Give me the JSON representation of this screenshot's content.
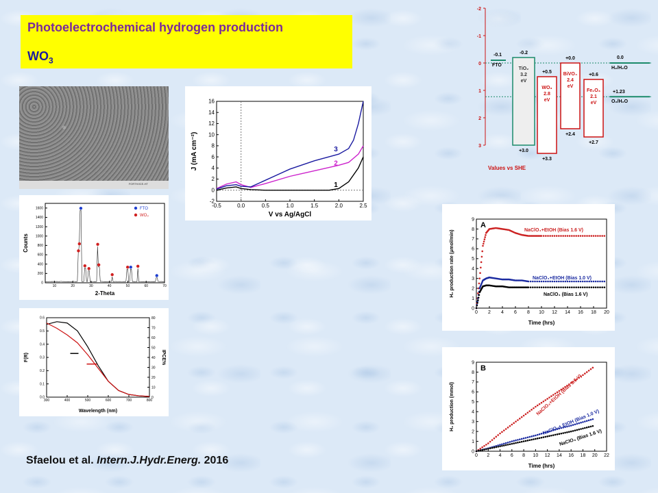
{
  "title": {
    "line1": "Photoelectrochemical hydrogen production",
    "line2_main": "WO",
    "line2_sub": "3"
  },
  "citation": {
    "authors": "Sfaelou et al.",
    "journal": "Intern.J.Hydr.Energ.",
    "year": "2016"
  },
  "sem": {
    "footer": "FORTH/ICE-HT"
  },
  "jv_chart": {
    "chart_data": {
      "type": "line",
      "xlabel": "V vs Ag/AgCl",
      "ylabel": "J (mA cm⁻²)",
      "xlim": [
        -0.5,
        2.5
      ],
      "ylim": [
        -2,
        16
      ],
      "xticks": [
        "-0.5",
        "0.0",
        "0.5",
        "1.0",
        "1.5",
        "2.0",
        "2.5"
      ],
      "yticks": [
        "-2",
        "0",
        "2",
        "4",
        "6",
        "8",
        "10",
        "12",
        "14",
        "16"
      ],
      "series": [
        {
          "name": "1",
          "color": "#000000",
          "x": [
            -0.5,
            -0.3,
            -0.1,
            0.0,
            0.2,
            0.5,
            1.0,
            1.5,
            1.8,
            2.0,
            2.2,
            2.4,
            2.5
          ],
          "y": [
            0,
            0.4,
            0.6,
            0.3,
            0.1,
            0,
            0,
            0,
            0,
            0.3,
            1.5,
            4,
            6
          ]
        },
        {
          "name": "2",
          "color": "#cc22cc",
          "x": [
            -0.5,
            -0.3,
            -0.1,
            0.0,
            0.2,
            0.5,
            1.0,
            1.5,
            2.0,
            2.2,
            2.4,
            2.5
          ],
          "y": [
            0.3,
            1.1,
            1.5,
            1.0,
            0.5,
            1.2,
            2.5,
            3.5,
            4.5,
            5.0,
            6.5,
            8.0
          ]
        },
        {
          "name": "3",
          "color": "#1a1aa0",
          "x": [
            -0.5,
            -0.3,
            -0.1,
            0.0,
            0.2,
            0.5,
            1.0,
            1.5,
            2.0,
            2.2,
            2.3,
            2.4,
            2.5
          ],
          "y": [
            0.2,
            0.8,
            1.0,
            0.7,
            0.6,
            1.8,
            3.8,
            5.3,
            6.5,
            7.5,
            9,
            12,
            16
          ]
        }
      ]
    }
  },
  "xrd_chart": {
    "chart_data": {
      "type": "scatter",
      "xlabel": "2-Theta",
      "ylabel": "Counts",
      "xlim": [
        5,
        70
      ],
      "ylim": [
        0,
        1700
      ],
      "xticks": [
        "10",
        "20",
        "30",
        "40",
        "50",
        "60",
        "70"
      ],
      "yticks": [
        "0",
        "200",
        "400",
        "600",
        "800",
        "1000",
        "1200",
        "1400",
        "1600"
      ],
      "legend": [
        {
          "name": "FTO",
          "color": "#1f3fd0"
        },
        {
          "name": "WO₃",
          "color": "#d02020"
        }
      ],
      "peaks": [
        {
          "x": 23.1,
          "y": 640,
          "phase": "WO3"
        },
        {
          "x": 23.6,
          "y": 790,
          "phase": "WO3"
        },
        {
          "x": 24.4,
          "y": 1550,
          "phase": "FTO"
        },
        {
          "x": 26.6,
          "y": 320,
          "phase": "WO3"
        },
        {
          "x": 28.8,
          "y": 260,
          "phase": "WO3"
        },
        {
          "x": 33.6,
          "y": 780,
          "phase": "WO3"
        },
        {
          "x": 34.2,
          "y": 340,
          "phase": "WO3"
        },
        {
          "x": 41.5,
          "y": 130,
          "phase": "WO3"
        },
        {
          "x": 49.9,
          "y": 290,
          "phase": "WO3"
        },
        {
          "x": 51.6,
          "y": 290,
          "phase": "FTO"
        },
        {
          "x": 55.5,
          "y": 310,
          "phase": "WO3"
        },
        {
          "x": 65.8,
          "y": 110,
          "phase": "FTO"
        }
      ]
    }
  },
  "abs_chart": {
    "chart_data": {
      "type": "line",
      "xlabel": "Wavelength (nm)",
      "ylabel": "F(R)",
      "y2label": "IPCE%",
      "xlim": [
        300,
        800
      ],
      "ylim": [
        0,
        0.6
      ],
      "y2lim": [
        0,
        80
      ],
      "xticks": [
        "300",
        "400",
        "500",
        "600",
        "700",
        "800"
      ],
      "yticks": [
        "0.0",
        "0.1",
        "0.2",
        "0.3",
        "0.4",
        "0.5",
        "0.6"
      ],
      "y2ticks": [
        "0",
        "10",
        "20",
        "30",
        "40",
        "50",
        "60",
        "70",
        "80"
      ],
      "series": [
        {
          "name": "F(R)",
          "color": "#000000",
          "x": [
            300,
            350,
            400,
            450,
            500,
            550,
            600,
            650,
            700,
            750,
            800
          ],
          "y": [
            0.55,
            0.57,
            0.56,
            0.5,
            0.38,
            0.24,
            0.12,
            0.05,
            0.02,
            0.01,
            0.005
          ]
        },
        {
          "name": "IPCE",
          "color": "#cc1111",
          "x": [
            300,
            350,
            400,
            450,
            500,
            550,
            600,
            650,
            700,
            750,
            800
          ],
          "y": [
            0.56,
            0.52,
            0.47,
            0.41,
            0.32,
            0.22,
            0.12,
            0.05,
            0.02,
            0.01,
            0.005
          ]
        }
      ]
    }
  },
  "band_chart": {
    "chart_data": {
      "type": "bar",
      "footer": "Values vs SHE",
      "ylim": [
        -2,
        3
      ],
      "yticks": [
        "-2",
        "-1",
        "0",
        "1",
        "2",
        "3"
      ],
      "levels": [
        {
          "label": "FTO",
          "top": "-0.1"
        },
        {
          "label": "TiO₂",
          "gap": "3.2",
          "unit": "eV",
          "top": "-0.2",
          "bottom": "+3.0"
        },
        {
          "label": "WO₃",
          "gap": "2.8",
          "unit": "eV",
          "top": "+0.5",
          "bottom": "+3.3"
        },
        {
          "label": "BiVO₄",
          "gap": "2.4",
          "unit": "eV",
          "top": "+0.0",
          "bottom": "+2.4"
        },
        {
          "label": "Fe₂O₃",
          "gap": "2.1",
          "unit": "eV",
          "top": "+0.6",
          "bottom": "+2.7"
        }
      ],
      "redox": [
        {
          "label": "H₂/H₂O",
          "value": "0.0"
        },
        {
          "label": "O₂/H₂O",
          "value": "+1.23"
        }
      ]
    }
  },
  "rate_chart": {
    "chart_data": {
      "type": "scatter",
      "panel": "A",
      "xlabel": "Time (hrs)",
      "ylabel": "H₂ production rate (μmol/min)",
      "xlim": [
        0,
        20
      ],
      "ylim": [
        0,
        9
      ],
      "xticks": [
        "0",
        "2",
        "4",
        "6",
        "8",
        "10",
        "12",
        "14",
        "16",
        "18",
        "20"
      ],
      "yticks": [
        "0",
        "1",
        "2",
        "3",
        "4",
        "5",
        "6",
        "7",
        "8",
        "9"
      ],
      "series": [
        {
          "name": "NaClO₄+EtOH (Bias 1.6 V)",
          "color": "#cc2222",
          "x": [
            0,
            0.5,
            1,
            1.5,
            2,
            3,
            4,
            5,
            6,
            7,
            8,
            9,
            10,
            12,
            14,
            16,
            18,
            20
          ],
          "y": [
            0,
            3,
            6.3,
            7.6,
            8.0,
            8.1,
            8.0,
            7.9,
            7.6,
            7.4,
            7.3,
            7.3,
            7.3,
            7.3,
            7.3,
            7.3,
            7.3,
            7.3
          ]
        },
        {
          "name": "NaClO₄+EtOH (Bias 1.0 V)",
          "color": "#1a2aa0",
          "x": [
            0,
            0.5,
            1,
            1.5,
            2,
            3,
            4,
            5,
            6,
            7,
            8,
            10,
            12,
            14,
            16,
            18,
            20
          ],
          "y": [
            0,
            2.0,
            2.8,
            3.0,
            3.1,
            3.0,
            2.9,
            2.9,
            2.8,
            2.8,
            2.7,
            2.7,
            2.7,
            2.7,
            2.7,
            2.7,
            2.7
          ]
        },
        {
          "name": "NaClO₄ (Bias 1.6 V)",
          "color": "#000000",
          "x": [
            0,
            0.5,
            1,
            1.5,
            2,
            3,
            4,
            5,
            6,
            7,
            8,
            10,
            12,
            14,
            16,
            18,
            20
          ],
          "y": [
            0,
            1.6,
            2.2,
            2.3,
            2.3,
            2.2,
            2.2,
            2.1,
            2.1,
            2.1,
            2.1,
            2.1,
            2.1,
            2.1,
            2.1,
            2.1,
            2.1
          ]
        }
      ]
    }
  },
  "cum_chart": {
    "chart_data": {
      "type": "scatter",
      "panel": "B",
      "xlabel": "Time (hrs)",
      "ylabel": "H₂ production (mmol)",
      "xlim": [
        0,
        22
      ],
      "ylim": [
        0,
        9
      ],
      "xticks": [
        "0",
        "2",
        "4",
        "6",
        "8",
        "10",
        "12",
        "14",
        "16",
        "18",
        "20",
        "22"
      ],
      "yticks": [
        "0",
        "1",
        "2",
        "3",
        "4",
        "5",
        "6",
        "7",
        "8",
        "9"
      ],
      "series": [
        {
          "name": "NaClO₄+EtOH (Bias 1.6 V)",
          "color": "#cc2222",
          "x": [
            0,
            2,
            4,
            6,
            8,
            10,
            12,
            14,
            16,
            18,
            20
          ],
          "y": [
            0,
            0.8,
            1.8,
            2.7,
            3.6,
            4.5,
            5.3,
            6.1,
            6.9,
            7.7,
            8.6
          ]
        },
        {
          "name": "NaClO₄+ EtOH (Bias 1.0 V)",
          "color": "#1a2aa0",
          "x": [
            0,
            2,
            4,
            6,
            8,
            10,
            12,
            14,
            16,
            18,
            20
          ],
          "y": [
            0,
            0.3,
            0.65,
            1.0,
            1.3,
            1.6,
            1.95,
            2.3,
            2.6,
            2.95,
            3.3
          ]
        },
        {
          "name": "NaClO₄ (Bias 1.6 V)",
          "color": "#000000",
          "x": [
            0,
            2,
            4,
            6,
            8,
            10,
            12,
            14,
            16,
            18,
            20
          ],
          "y": [
            0,
            0.25,
            0.5,
            0.75,
            1.0,
            1.25,
            1.5,
            1.75,
            2.0,
            2.3,
            2.6
          ]
        }
      ]
    }
  }
}
